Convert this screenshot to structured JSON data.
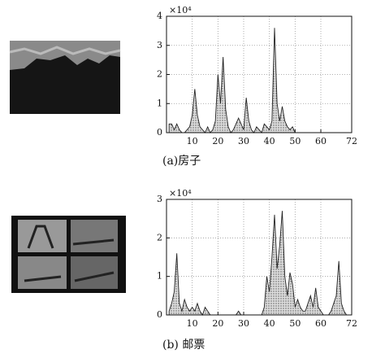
{
  "chart_data": [
    {
      "type": "area",
      "caption": "(a)房子",
      "exponent_label": "×10⁴",
      "x": [
        1,
        2,
        3,
        4,
        5,
        6,
        7,
        8,
        9,
        10,
        11,
        12,
        13,
        14,
        15,
        16,
        17,
        18,
        19,
        20,
        21,
        22,
        23,
        24,
        25,
        26,
        27,
        28,
        29,
        30,
        31,
        32,
        33,
        34,
        35,
        36,
        37,
        38,
        39,
        40,
        41,
        42,
        43,
        44,
        45,
        46,
        47,
        48,
        49,
        50,
        51,
        52,
        53,
        54,
        55,
        56,
        57,
        58,
        59,
        60,
        61,
        62,
        63,
        64,
        65,
        66,
        67,
        68,
        69,
        70,
        71,
        72
      ],
      "series": [
        {
          "color": "#222222",
          "values": [
            0.3,
            0.3,
            0.1,
            0.3,
            0.1,
            0,
            0,
            0.1,
            0.2,
            0.6,
            1.5,
            0.6,
            0.2,
            0.1,
            0,
            0.2,
            0,
            0.1,
            0.4,
            2.0,
            1.0,
            2.6,
            0.8,
            0.2,
            0,
            0.1,
            0.3,
            0.5,
            0.3,
            0.1,
            1.2,
            0.4,
            0.1,
            0,
            0.2,
            0.1,
            0,
            0.3,
            0.2,
            0.1,
            0.4,
            3.6,
            1.0,
            0.4,
            0.9,
            0.4,
            0.2,
            0.1,
            0.2,
            0,
            0,
            0,
            0,
            0,
            0,
            0,
            0,
            0,
            0,
            0,
            0,
            0,
            0,
            0,
            0,
            0,
            0,
            0,
            0,
            0,
            0,
            0
          ]
        }
      ],
      "xlim": [
        0,
        72
      ],
      "xticks": [
        10,
        20,
        30,
        40,
        50,
        60,
        72
      ],
      "ylim": [
        0,
        4
      ],
      "yticks": [
        0,
        1,
        2,
        3,
        4
      ],
      "grid": true
    },
    {
      "type": "area",
      "caption": "(b) 邮票",
      "exponent_label": "×10⁴",
      "x": [
        1,
        2,
        3,
        4,
        5,
        6,
        7,
        8,
        9,
        10,
        11,
        12,
        13,
        14,
        15,
        16,
        17,
        18,
        19,
        20,
        21,
        22,
        23,
        24,
        25,
        26,
        27,
        28,
        29,
        30,
        31,
        32,
        33,
        34,
        35,
        36,
        37,
        38,
        39,
        40,
        41,
        42,
        43,
        44,
        45,
        46,
        47,
        48,
        49,
        50,
        51,
        52,
        53,
        54,
        55,
        56,
        57,
        58,
        59,
        60,
        61,
        62,
        63,
        64,
        65,
        66,
        67,
        68,
        69,
        70,
        71,
        72
      ],
      "series": [
        {
          "color": "#222222",
          "values": [
            0.1,
            0.3,
            0.6,
            1.6,
            0.3,
            0.1,
            0.4,
            0.2,
            0.1,
            0.2,
            0.1,
            0.3,
            0.1,
            0,
            0.2,
            0.1,
            0,
            0,
            0,
            0,
            0,
            0,
            0,
            0,
            0,
            0,
            0,
            0.1,
            0,
            0,
            0,
            0,
            0,
            0,
            0,
            0,
            0,
            0.2,
            1.0,
            0.6,
            1.5,
            2.6,
            1.2,
            1.8,
            2.7,
            1.0,
            0.5,
            1.1,
            0.8,
            0.2,
            0.4,
            0.2,
            0.1,
            0.1,
            0.3,
            0.5,
            0.2,
            0.7,
            0.2,
            0.1,
            0,
            0,
            0,
            0.1,
            0.3,
            0.5,
            1.4,
            0.3,
            0.1,
            0,
            0,
            0
          ]
        }
      ],
      "xlim": [
        0,
        72
      ],
      "xticks": [
        10,
        20,
        30,
        40,
        50,
        60,
        72
      ],
      "ylim": [
        0,
        3
      ],
      "yticks": [
        0,
        1,
        2,
        3
      ],
      "grid": true
    }
  ]
}
